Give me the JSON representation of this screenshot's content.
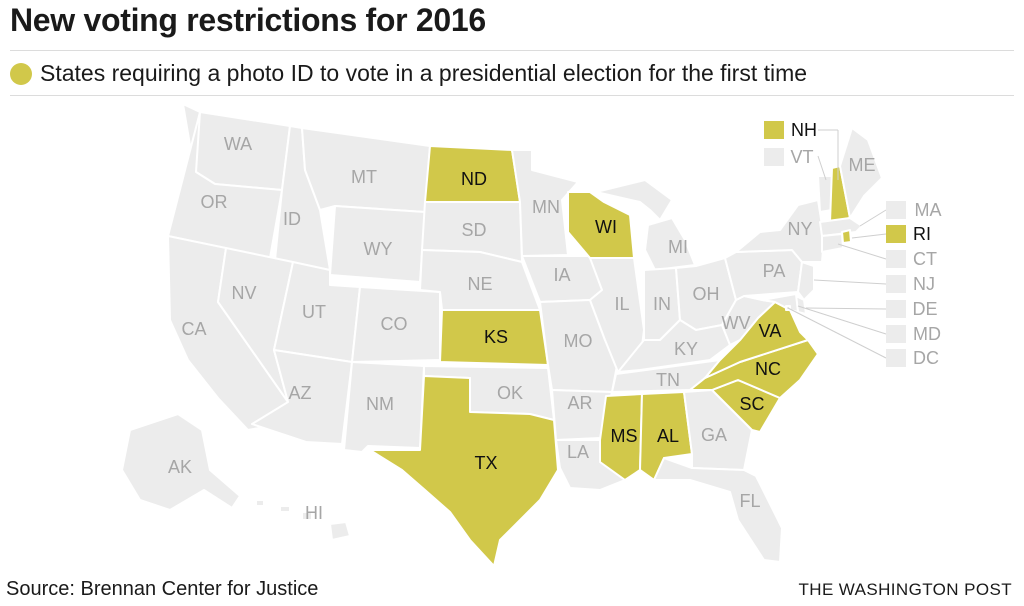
{
  "title": "New voting restrictions for 2016",
  "legend": {
    "text": "States requiring a photo ID to vote in a presidential election for the first time",
    "color": "#d1c84a"
  },
  "colors": {
    "highlight": "#d1c84a",
    "base": "#ececec",
    "border": "#ffffff",
    "label_off": "#a6a6a6"
  },
  "states": {
    "WA": false,
    "OR": false,
    "CA": false,
    "ID": false,
    "NV": false,
    "MT": false,
    "WY": false,
    "UT": false,
    "AZ": false,
    "CO": false,
    "NM": false,
    "ND": true,
    "SD": false,
    "NE": false,
    "KS": true,
    "OK": false,
    "TX": true,
    "MN": false,
    "IA": false,
    "MO": false,
    "AR": false,
    "LA": false,
    "WI": true,
    "IL": false,
    "MI": false,
    "IN": false,
    "OH": false,
    "KY": false,
    "TN": false,
    "MS": true,
    "AL": true,
    "GA": false,
    "FL": false,
    "SC": true,
    "NC": true,
    "VA": true,
    "WV": false,
    "PA": false,
    "NY": false,
    "VT": false,
    "NH": true,
    "ME": false,
    "MA": false,
    "RI": true,
    "CT": false,
    "NJ": false,
    "DE": false,
    "MD": false,
    "DC": false,
    "AK": false,
    "HI": false
  },
  "footer": {
    "source": "Source: Brennan Center for Justice",
    "credit": "THE WASHINGTON POST"
  }
}
